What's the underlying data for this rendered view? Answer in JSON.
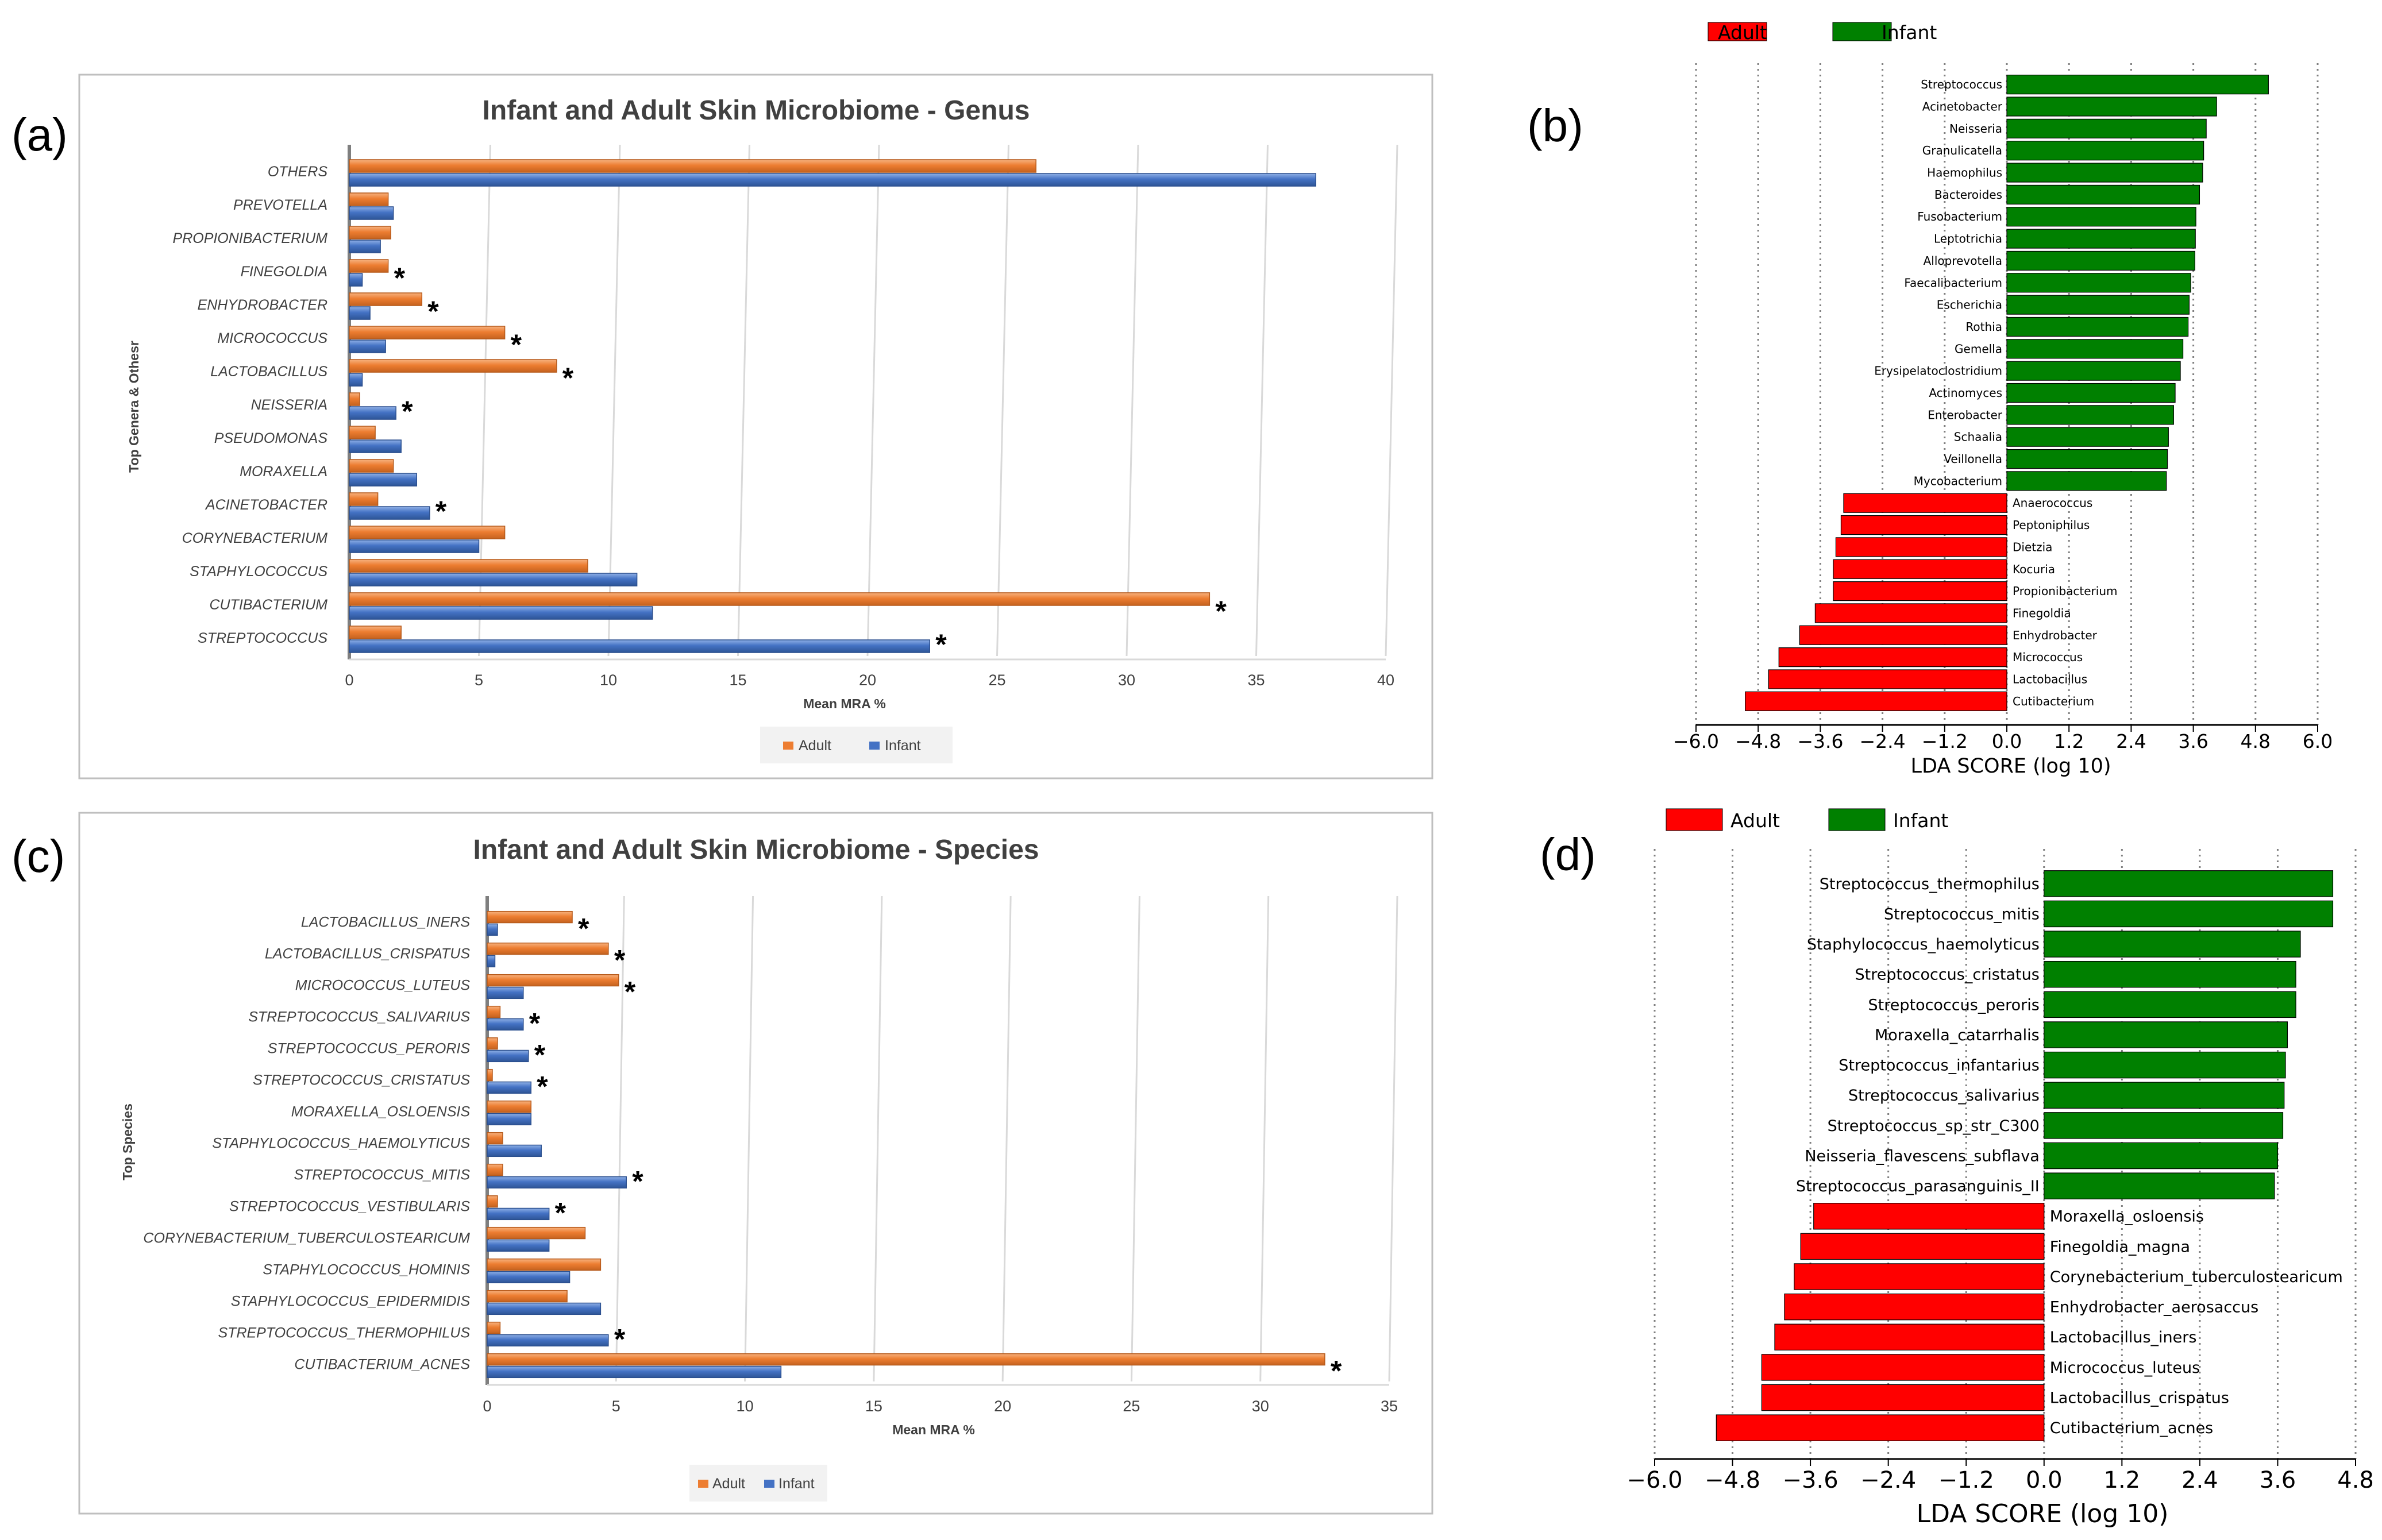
{
  "panel_labels": [
    "(a)",
    "(b)",
    "(c)",
    "(d)"
  ],
  "colors": {
    "adult_bar": "#ED7D31",
    "infant_bar": "#4472C4",
    "lda_adult": "#FF0000",
    "lda_infant": "#008000"
  },
  "chart_data": [
    {
      "type": "bar",
      "orientation": "horizontal",
      "title": "Infant and Adult Skin Microbiome - Genus",
      "xlabel": "Mean MRA %",
      "ylabel": "Top Genera & Othesr",
      "xlim": [
        0,
        40
      ],
      "xticks": [
        0,
        5,
        10,
        15,
        20,
        25,
        30,
        35,
        40
      ],
      "legend": [
        "Adult",
        "Infant"
      ],
      "legend_position": "bottom",
      "grid": true,
      "categories": [
        "OTHERS",
        "PREVOTELLA",
        "PROPIONIBACTERIUM",
        "FINEGOLDIA",
        "ENHYDROBACTER",
        "MICROCOCCUS",
        "LACTOBACILLUS",
        "NEISSERIA",
        "PSEUDOMONAS",
        "MORAXELLA",
        "ACINETOBACTER",
        "CORYNEBACTERIUM",
        "STAPHYLOCOCCUS",
        "CUTIBACTERIUM",
        "STREPTOCOCCUS"
      ],
      "series": [
        {
          "name": "Adult",
          "values": [
            26.5,
            1.5,
            1.6,
            1.5,
            2.8,
            6.0,
            8.0,
            0.4,
            1.0,
            1.7,
            1.1,
            6.0,
            9.2,
            33.2,
            2.0
          ]
        },
        {
          "name": "Infant",
          "values": [
            37.3,
            1.7,
            1.2,
            0.5,
            0.8,
            1.4,
            0.5,
            1.8,
            2.0,
            2.6,
            3.1,
            5.0,
            11.1,
            11.7,
            22.4
          ]
        }
      ],
      "significance": [
        false,
        false,
        false,
        true,
        true,
        true,
        true,
        true,
        false,
        false,
        true,
        false,
        false,
        true,
        true
      ],
      "significance_marker": "*"
    },
    {
      "type": "bar",
      "orientation": "horizontal",
      "xlabel": "LDA SCORE (log 10)",
      "xlim": [
        -6.0,
        6.0
      ],
      "xticks": [
        "−6.0",
        "−4.8",
        "−3.6",
        "−2.4",
        "−1.2",
        "0.0",
        "1.2",
        "2.4",
        "3.6",
        "4.8",
        "6.0"
      ],
      "legend": [
        "Adult",
        "Infant"
      ],
      "legend_position": "top",
      "grid": true,
      "categories": [
        "Streptococcus",
        "Acinetobacter",
        "Neisseria",
        "Granulicatella",
        "Haemophilus",
        "Bacteroides",
        "Fusobacterium",
        "Leptotrichia",
        "Alloprevotella",
        "Faecalibacterium",
        "Escherichia",
        "Rothia",
        "Gemella",
        "Erysipelatoclostridium",
        "Actinomyces",
        "Enterobacter",
        "Schaalia",
        "Veillonella",
        "Mycobacterium",
        "Anaerococcus",
        "Peptoniphilus",
        "Dietzia",
        "Kocuria",
        "Propionibacterium",
        "Finegoldia",
        "Enhydrobacter",
        "Micrococcus",
        "Lactobacillus",
        "Cutibacterium"
      ],
      "values": [
        5.05,
        4.05,
        3.85,
        3.8,
        3.78,
        3.72,
        3.65,
        3.64,
        3.63,
        3.55,
        3.52,
        3.5,
        3.4,
        3.35,
        3.25,
        3.22,
        3.12,
        3.1,
        3.08,
        -3.15,
        -3.2,
        -3.3,
        -3.35,
        -3.35,
        -3.7,
        -4.0,
        -4.4,
        -4.6,
        -5.05
      ],
      "groups": [
        "Infant",
        "Infant",
        "Infant",
        "Infant",
        "Infant",
        "Infant",
        "Infant",
        "Infant",
        "Infant",
        "Infant",
        "Infant",
        "Infant",
        "Infant",
        "Infant",
        "Infant",
        "Infant",
        "Infant",
        "Infant",
        "Infant",
        "Adult",
        "Adult",
        "Adult",
        "Adult",
        "Adult",
        "Adult",
        "Adult",
        "Adult",
        "Adult",
        "Adult"
      ]
    },
    {
      "type": "bar",
      "orientation": "horizontal",
      "title": "Infant and Adult Skin Microbiome - Species",
      "xlabel": "Mean MRA %",
      "ylabel": "Top Species",
      "xlim": [
        0,
        35
      ],
      "xticks": [
        0,
        5,
        10,
        15,
        20,
        25,
        30,
        35
      ],
      "legend": [
        "Adult",
        "Infant"
      ],
      "legend_position": "bottom",
      "grid": true,
      "categories": [
        "LACTOBACILLUS_INERS",
        "LACTOBACILLUS_CRISPATUS",
        "MICROCOCCUS_LUTEUS",
        "STREPTOCOCCUS_SALIVARIUS",
        "STREPTOCOCCUS_PERORIS",
        "STREPTOCOCCUS_CRISTATUS",
        "MORAXELLA_OSLOENSIS",
        "STAPHYLOCOCCUS_HAEMOLYTICUS",
        "STREPTOCOCCUS_MITIS",
        "STREPTOCOCCUS_VESTIBULARIS",
        "CORYNEBACTERIUM_TUBERCULOSTEARICUM",
        "STAPHYLOCOCCUS_HOMINIS",
        "STAPHYLOCOCCUS_EPIDERMIDIS",
        "STREPTOCOCCUS_THERMOPHILUS",
        "CUTIBACTERIUM_ACNES"
      ],
      "series": [
        {
          "name": "Adult",
          "values": [
            3.3,
            4.7,
            5.1,
            0.5,
            0.4,
            0.2,
            1.7,
            0.6,
            0.6,
            0.4,
            3.8,
            4.4,
            3.1,
            0.5,
            32.5
          ]
        },
        {
          "name": "Infant",
          "values": [
            0.4,
            0.3,
            1.4,
            1.4,
            1.6,
            1.7,
            1.7,
            2.1,
            5.4,
            2.4,
            2.4,
            3.2,
            4.4,
            4.7,
            11.4
          ]
        }
      ],
      "significance": [
        true,
        true,
        true,
        true,
        true,
        true,
        false,
        false,
        true,
        true,
        false,
        false,
        false,
        true,
        true
      ],
      "significance_marker": "*"
    },
    {
      "type": "bar",
      "orientation": "horizontal",
      "xlabel": "LDA SCORE (log 10)",
      "xlim": [
        -6.0,
        4.8
      ],
      "xticks": [
        "−6.0",
        "−4.8",
        "−3.6",
        "−2.4",
        "−1.2",
        "0.0",
        "1.2",
        "2.4",
        "3.6",
        "4.8"
      ],
      "legend": [
        "Adult",
        "Infant"
      ],
      "legend_position": "top",
      "grid": true,
      "categories": [
        "Streptococcus_thermophilus",
        "Streptococcus_mitis",
        "Staphylococcus_haemolyticus",
        "Streptococcus_cristatus",
        "Streptococcus_peroris",
        "Moraxella_catarrhalis",
        "Streptococcus_infantarius",
        "Streptococcus_salivarius",
        "Streptococcus_sp_str_C300",
        "Neisseria_flavescens_subflava",
        "Streptococcus_parasanguinis_II",
        "Moraxella_osloensis",
        "Finegoldia_magna",
        "Corynebacterium_tuberculostearicum",
        "Enhydrobacter_aerosaccus",
        "Lactobacillus_iners",
        "Micrococcus_luteus",
        "Lactobacillus_crispatus",
        "Cutibacterium_acnes"
      ],
      "values": [
        4.45,
        4.45,
        3.95,
        3.88,
        3.88,
        3.75,
        3.72,
        3.7,
        3.68,
        3.6,
        3.55,
        -3.55,
        -3.75,
        -3.85,
        -4.0,
        -4.15,
        -4.35,
        -4.35,
        -5.05
      ],
      "groups": [
        "Infant",
        "Infant",
        "Infant",
        "Infant",
        "Infant",
        "Infant",
        "Infant",
        "Infant",
        "Infant",
        "Infant",
        "Infant",
        "Adult",
        "Adult",
        "Adult",
        "Adult",
        "Adult",
        "Adult",
        "Adult",
        "Adult"
      ]
    }
  ]
}
